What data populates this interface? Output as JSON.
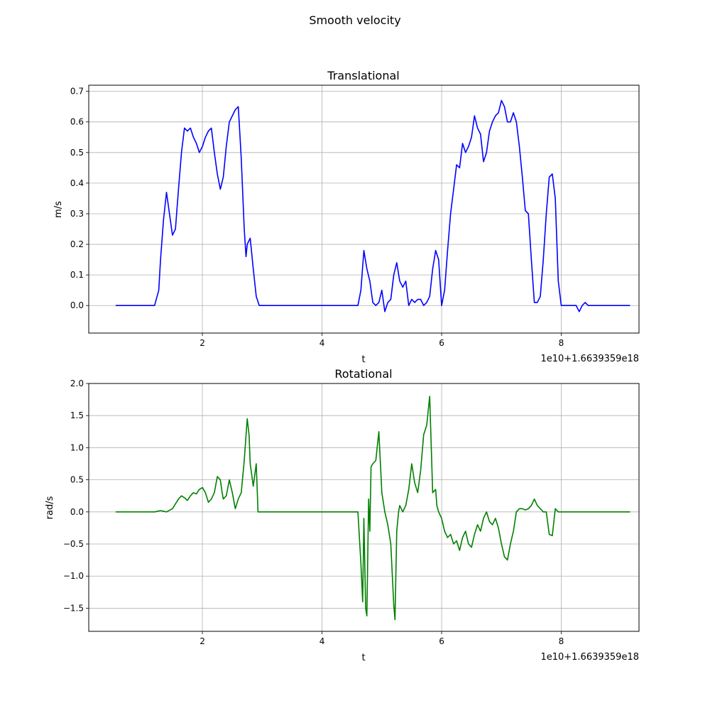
{
  "figure": {
    "suptitle": "Smooth velocity"
  },
  "chart_data": [
    {
      "type": "line",
      "title": "Translational",
      "xlabel": "t",
      "ylabel": "m/s",
      "x_offset_text": "1e10+1.6639359e18",
      "xlim": [
        0.1,
        9.3
      ],
      "ylim": [
        -0.09,
        0.72
      ],
      "xticks": [
        2,
        4,
        6,
        8
      ],
      "yticks": [
        0.0,
        0.1,
        0.2,
        0.3,
        0.4,
        0.5,
        0.6,
        0.7
      ],
      "ytick_labels": [
        "0.0",
        "0.1",
        "0.2",
        "0.3",
        "0.4",
        "0.5",
        "0.6",
        "0.7"
      ],
      "grid": true,
      "series": [
        {
          "color": "#0000ff",
          "x": [
            0.55,
            1.2,
            1.27,
            1.3,
            1.35,
            1.4,
            1.45,
            1.5,
            1.55,
            1.6,
            1.65,
            1.7,
            1.75,
            1.8,
            1.85,
            1.9,
            1.95,
            2.0,
            2.05,
            2.1,
            2.15,
            2.2,
            2.25,
            2.3,
            2.35,
            2.4,
            2.45,
            2.5,
            2.55,
            2.6,
            2.63,
            2.65,
            2.7,
            2.73,
            2.75,
            2.8,
            2.85,
            2.9,
            2.95,
            3.0,
            4.6,
            4.65,
            4.7,
            4.75,
            4.8,
            4.85,
            4.9,
            4.95,
            5.0,
            5.05,
            5.1,
            5.15,
            5.2,
            5.25,
            5.3,
            5.35,
            5.4,
            5.45,
            5.5,
            5.55,
            5.6,
            5.65,
            5.7,
            5.75,
            5.8,
            5.85,
            5.9,
            5.95,
            6.0,
            6.05,
            6.1,
            6.15,
            6.2,
            6.25,
            6.3,
            6.35,
            6.4,
            6.45,
            6.5,
            6.55,
            6.6,
            6.65,
            6.7,
            6.75,
            6.8,
            6.85,
            6.9,
            6.95,
            7.0,
            7.05,
            7.1,
            7.15,
            7.2,
            7.25,
            7.3,
            7.35,
            7.4,
            7.45,
            7.5,
            7.55,
            7.6,
            7.65,
            7.7,
            7.75,
            7.8,
            7.85,
            7.9,
            7.95,
            8.0,
            8.05,
            8.25,
            8.3,
            8.35,
            8.4,
            8.45,
            9.15
          ],
          "y": [
            0.0,
            0.0,
            0.05,
            0.15,
            0.28,
            0.37,
            0.3,
            0.23,
            0.25,
            0.38,
            0.5,
            0.58,
            0.57,
            0.58,
            0.55,
            0.53,
            0.5,
            0.52,
            0.55,
            0.57,
            0.58,
            0.5,
            0.43,
            0.38,
            0.42,
            0.52,
            0.6,
            0.62,
            0.64,
            0.65,
            0.55,
            0.48,
            0.25,
            0.16,
            0.2,
            0.22,
            0.12,
            0.03,
            0.0,
            0.0,
            0.0,
            0.05,
            0.18,
            0.12,
            0.08,
            0.01,
            0.0,
            0.01,
            0.05,
            -0.02,
            0.01,
            0.02,
            0.1,
            0.14,
            0.08,
            0.06,
            0.08,
            0.0,
            0.02,
            0.01,
            0.02,
            0.02,
            0.0,
            0.01,
            0.03,
            0.12,
            0.18,
            0.15,
            0.0,
            0.05,
            0.18,
            0.3,
            0.38,
            0.46,
            0.45,
            0.53,
            0.5,
            0.52,
            0.55,
            0.62,
            0.58,
            0.56,
            0.47,
            0.5,
            0.57,
            0.6,
            0.62,
            0.63,
            0.67,
            0.65,
            0.6,
            0.6,
            0.63,
            0.6,
            0.52,
            0.42,
            0.31,
            0.3,
            0.15,
            0.01,
            0.01,
            0.03,
            0.15,
            0.3,
            0.42,
            0.43,
            0.35,
            0.08,
            0.0,
            0.0,
            0.0,
            -0.02,
            0.0,
            0.01,
            0.0,
            0.0
          ]
        }
      ]
    },
    {
      "type": "line",
      "title": "Rotational",
      "xlabel": "t",
      "ylabel": "rad/s",
      "x_offset_text": "1e10+1.6639359e18",
      "xlim": [
        0.1,
        9.3
      ],
      "ylim": [
        -1.86,
        2.0
      ],
      "xticks": [
        2,
        4,
        6,
        8
      ],
      "yticks": [
        -1.5,
        -1.0,
        -0.5,
        0.0,
        0.5,
        1.0,
        1.5,
        2.0
      ],
      "ytick_labels": [
        "−1.5",
        "−1.0",
        "−0.5",
        "0.0",
        "0.5",
        "1.0",
        "1.5",
        "2.0"
      ],
      "grid": true,
      "series": [
        {
          "color": "#008000",
          "x": [
            0.55,
            1.2,
            1.3,
            1.4,
            1.5,
            1.6,
            1.65,
            1.7,
            1.75,
            1.8,
            1.85,
            1.9,
            1.95,
            2.0,
            2.05,
            2.1,
            2.15,
            2.2,
            2.25,
            2.3,
            2.33,
            2.35,
            2.4,
            2.45,
            2.5,
            2.55,
            2.6,
            2.65,
            2.7,
            2.75,
            2.78,
            2.8,
            2.85,
            2.9,
            2.93,
            2.95,
            3.0,
            4.6,
            4.65,
            4.68,
            4.7,
            4.73,
            4.75,
            4.78,
            4.8,
            4.82,
            4.85,
            4.9,
            4.95,
            5.0,
            5.05,
            5.1,
            5.15,
            5.2,
            5.22,
            5.25,
            5.28,
            5.3,
            5.35,
            5.4,
            5.45,
            5.5,
            5.55,
            5.6,
            5.65,
            5.7,
            5.75,
            5.8,
            5.85,
            5.9,
            5.92,
            5.95,
            6.0,
            6.05,
            6.1,
            6.15,
            6.2,
            6.25,
            6.3,
            6.35,
            6.4,
            6.45,
            6.5,
            6.55,
            6.6,
            6.65,
            6.7,
            6.75,
            6.8,
            6.85,
            6.9,
            6.95,
            7.0,
            7.05,
            7.1,
            7.15,
            7.2,
            7.25,
            7.3,
            7.35,
            7.4,
            7.45,
            7.5,
            7.55,
            7.6,
            7.65,
            7.7,
            7.75,
            7.8,
            7.85,
            7.9,
            7.95,
            8.0,
            8.05,
            8.3,
            8.4,
            8.43,
            8.45,
            8.47,
            9.15
          ],
          "y": [
            0.0,
            0.0,
            0.02,
            0.0,
            0.05,
            0.2,
            0.25,
            0.22,
            0.18,
            0.25,
            0.3,
            0.28,
            0.35,
            0.38,
            0.3,
            0.15,
            0.2,
            0.3,
            0.55,
            0.5,
            0.3,
            0.2,
            0.25,
            0.5,
            0.3,
            0.05,
            0.2,
            0.3,
            0.8,
            1.45,
            1.2,
            0.75,
            0.4,
            0.75,
            0.0,
            0.0,
            0.0,
            0.0,
            -0.8,
            -1.4,
            -0.1,
            -1.5,
            -1.62,
            0.2,
            -0.3,
            0.7,
            0.75,
            0.8,
            1.25,
            0.3,
            0.0,
            -0.2,
            -0.5,
            -1.45,
            -1.68,
            -0.3,
            0.0,
            0.1,
            0.0,
            0.1,
            0.35,
            0.75,
            0.45,
            0.3,
            0.65,
            1.2,
            1.35,
            1.8,
            0.3,
            0.35,
            0.1,
            0.0,
            -0.1,
            -0.3,
            -0.4,
            -0.35,
            -0.5,
            -0.45,
            -0.6,
            -0.4,
            -0.3,
            -0.5,
            -0.55,
            -0.35,
            -0.2,
            -0.3,
            -0.1,
            0.0,
            -0.15,
            -0.2,
            -0.1,
            -0.25,
            -0.5,
            -0.7,
            -0.75,
            -0.5,
            -0.3,
            0.0,
            0.05,
            0.05,
            0.03,
            0.05,
            0.1,
            0.2,
            0.1,
            0.05,
            0.0,
            0.0,
            -0.35,
            -0.37,
            0.05,
            0.0,
            0.0,
            0.0,
            0.0,
            0.0,
            0.0,
            0.0,
            0.0,
            0.0
          ]
        }
      ]
    }
  ]
}
